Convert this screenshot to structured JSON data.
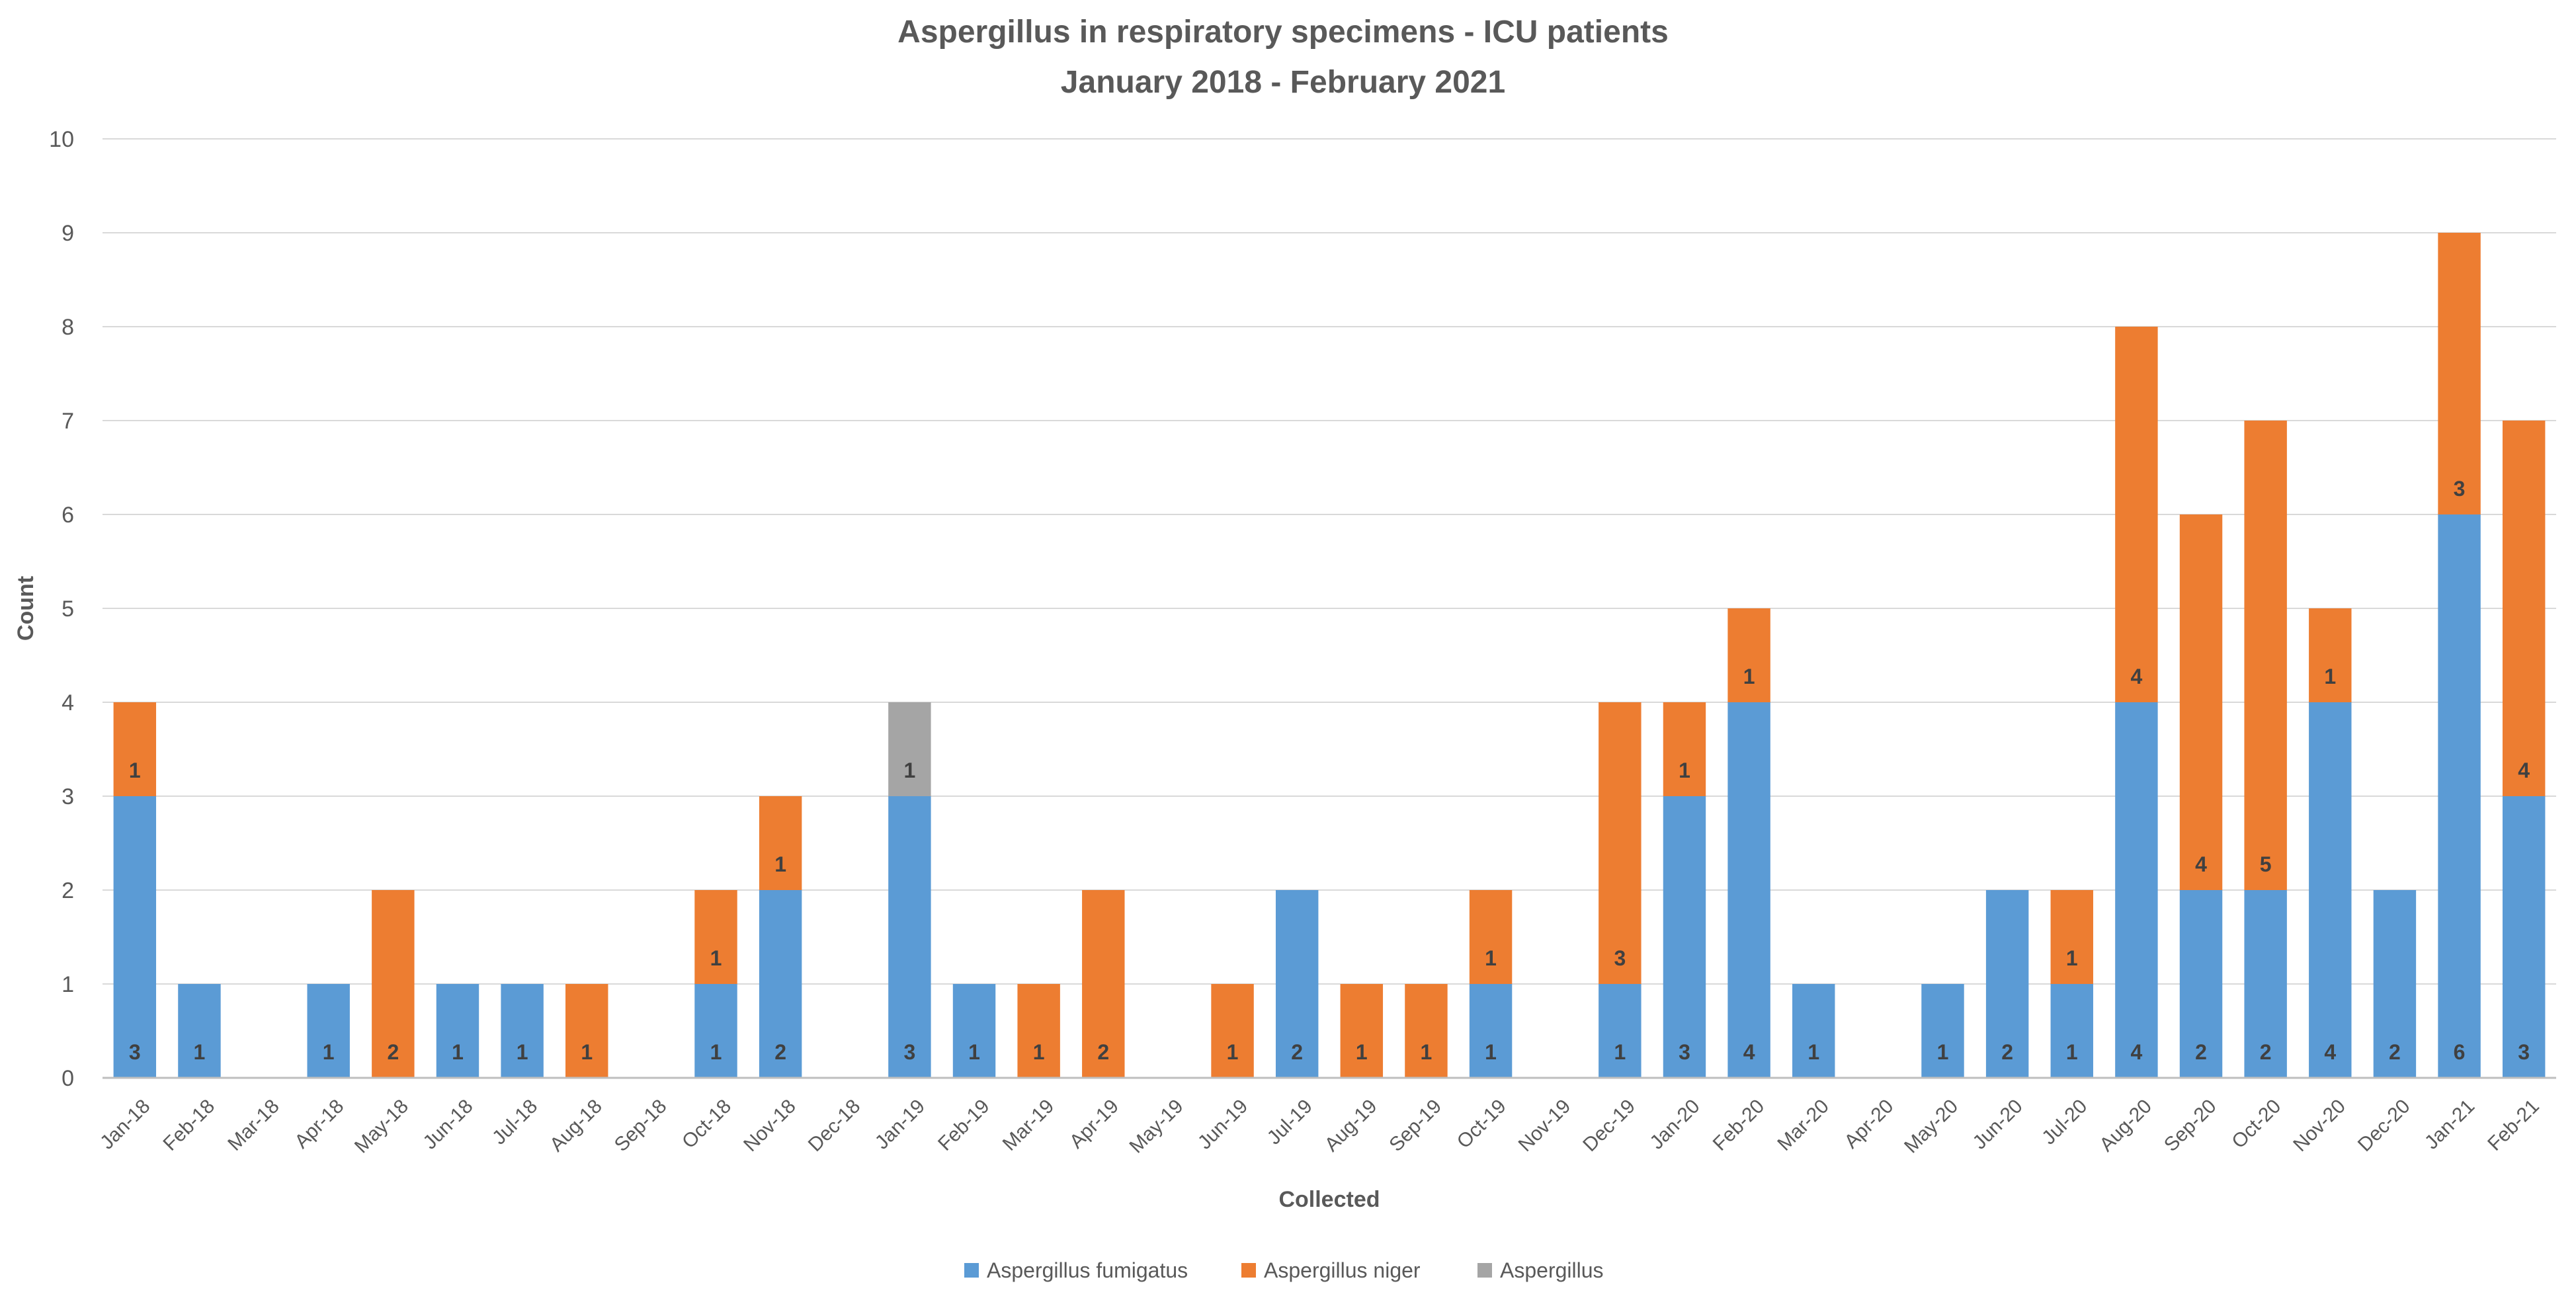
{
  "chart_data": {
    "type": "bar",
    "stacked": true,
    "title": "Aspergillus in respiratory specimens - ICU patients",
    "subtitle": "January 2018 - February 2021",
    "xlabel": "Collected",
    "ylabel": "Count",
    "ylim": [
      0,
      10
    ],
    "yticks": [
      0,
      1,
      2,
      3,
      4,
      5,
      6,
      7,
      8,
      9,
      10
    ],
    "grid": true,
    "legend_position": "bottom",
    "categories": [
      "Jan-18",
      "Feb-18",
      "Mar-18",
      "Apr-18",
      "May-18",
      "Jun-18",
      "Jul-18",
      "Aug-18",
      "Sep-18",
      "Oct-18",
      "Nov-18",
      "Dec-18",
      "Jan-19",
      "Feb-19",
      "Mar-19",
      "Apr-19",
      "May-19",
      "Jun-19",
      "Jul-19",
      "Aug-19",
      "Sep-19",
      "Oct-19",
      "Nov-19",
      "Dec-19",
      "Jan-20",
      "Feb-20",
      "Mar-20",
      "Apr-20",
      "May-20",
      "Jun-20",
      "Jul-20",
      "Aug-20",
      "Sep-20",
      "Oct-20",
      "Nov-20",
      "Dec-20",
      "Jan-21",
      "Feb-21"
    ],
    "series": [
      {
        "name": "Aspergillus fumigatus",
        "color": "#5B9BD5",
        "values": [
          3,
          1,
          0,
          1,
          0,
          1,
          1,
          0,
          0,
          1,
          2,
          0,
          3,
          1,
          0,
          0,
          0,
          0,
          2,
          0,
          0,
          1,
          0,
          1,
          3,
          4,
          1,
          0,
          1,
          2,
          1,
          4,
          2,
          2,
          4,
          2,
          6,
          3
        ]
      },
      {
        "name": "Aspergillus niger",
        "color": "#ED7D31",
        "values": [
          1,
          0,
          0,
          0,
          2,
          0,
          0,
          1,
          0,
          1,
          1,
          0,
          0,
          0,
          1,
          2,
          0,
          1,
          0,
          1,
          1,
          1,
          0,
          3,
          1,
          1,
          0,
          0,
          0,
          0,
          1,
          4,
          4,
          5,
          1,
          0,
          3,
          4
        ]
      },
      {
        "name": "Aspergillus",
        "color": "#A5A5A5",
        "values": [
          0,
          0,
          0,
          0,
          0,
          0,
          0,
          0,
          0,
          0,
          0,
          0,
          1,
          0,
          0,
          0,
          0,
          0,
          0,
          0,
          0,
          0,
          0,
          0,
          0,
          0,
          0,
          0,
          0,
          0,
          0,
          0,
          0,
          0,
          0,
          0,
          0,
          0
        ]
      }
    ]
  }
}
